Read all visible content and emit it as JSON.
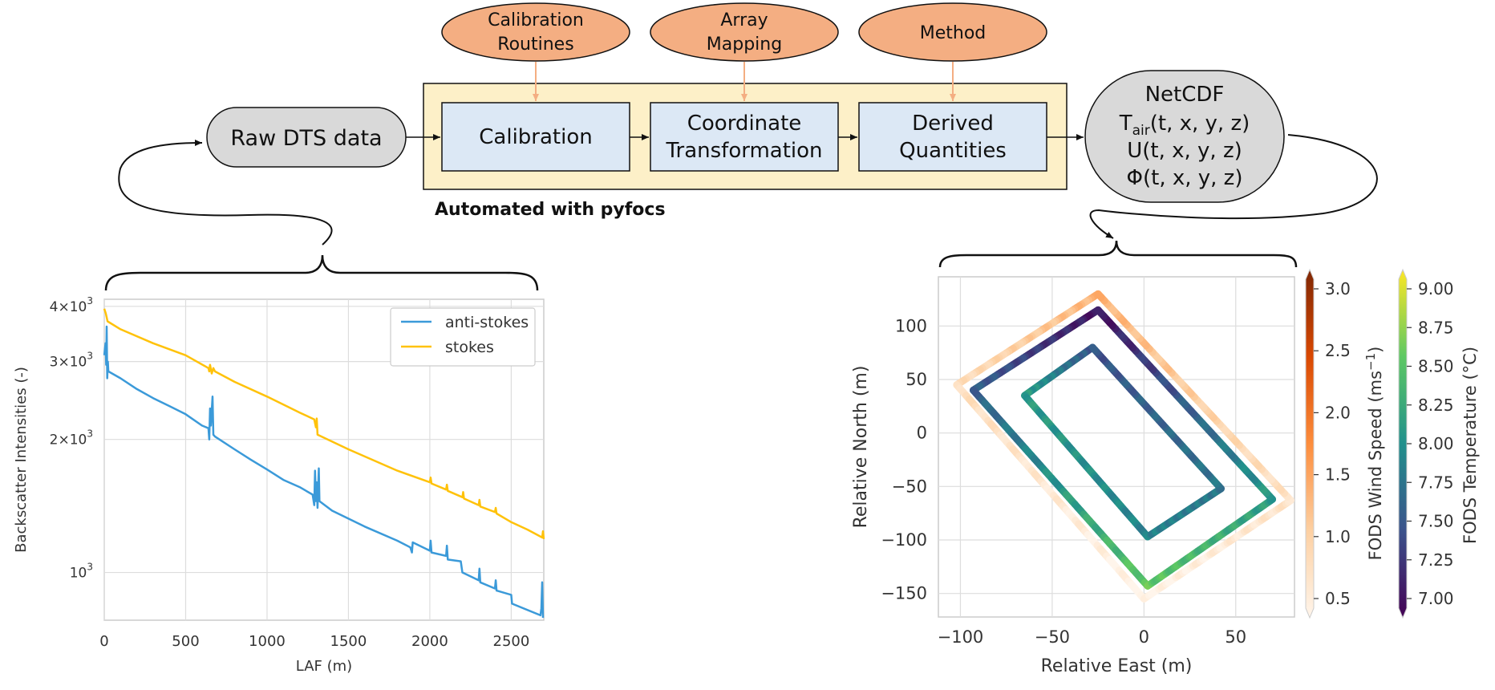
{
  "flow": {
    "inputs": [
      {
        "line1": "Calibration",
        "line2": "Routines"
      },
      {
        "line1": "Array",
        "line2": "Mapping"
      },
      {
        "line1": "Method",
        "line2": ""
      }
    ],
    "raw": "Raw DTS data",
    "steps": [
      {
        "line1": "Calibration",
        "line2": ""
      },
      {
        "line1": "Coordinate",
        "line2": "Transformation"
      },
      {
        "line1": "Derived",
        "line2": "Quantities"
      }
    ],
    "automated_label": "Automated with pyfocs",
    "netcdf": {
      "title": "NetCDF",
      "tair_T": "T",
      "tair_sub": "air",
      "tair_args": "(t, x, y, z)",
      "u": "U(t, x, y, z)",
      "phi": "Φ(t, x, y, z)"
    },
    "colors": {
      "input_fill": "#f4ae82",
      "step_fill": "#dce8f5",
      "auto_fill": "#fdf0c8",
      "grey_fill": "#d9d9d9",
      "arrow_orange": "#f4ae82"
    }
  },
  "chart_data": [
    {
      "type": "line",
      "xlabel": "LAF (m)",
      "ylabel": "Backscatter Intensities (-)",
      "yscale": "log",
      "xlim": [
        0,
        2700
      ],
      "ylim": [
        780,
        4150
      ],
      "xticks": [
        0,
        500,
        1000,
        1500,
        2000,
        2500
      ],
      "xtick_labels": [
        "0",
        "500",
        "1000",
        "1500",
        "2000",
        "2500"
      ],
      "ytick_labels": [
        {
          "value": 4000,
          "base": "4×10",
          "exp": "3"
        },
        {
          "value": 3000,
          "base": "3×10",
          "exp": "3"
        },
        {
          "value": 2000,
          "base": "2×10",
          "exp": "3"
        },
        {
          "value": 1000,
          "base": "10",
          "exp": "3"
        }
      ],
      "grid": true,
      "legend_position": "top-right",
      "series": [
        {
          "name": "anti-stokes",
          "color": "#3b9ad9",
          "points": [
            [
              0,
              3100
            ],
            [
              8,
              3300
            ],
            [
              12,
              2950
            ],
            [
              15,
              3600
            ],
            [
              18,
              2750
            ],
            [
              22,
              3000
            ],
            [
              25,
              2850
            ],
            [
              100,
              2750
            ],
            [
              200,
              2600
            ],
            [
              300,
              2480
            ],
            [
              400,
              2380
            ],
            [
              500,
              2280
            ],
            [
              600,
              2150
            ],
            [
              640,
              2120
            ],
            [
              645,
              2000
            ],
            [
              650,
              2350
            ],
            [
              655,
              2150
            ],
            [
              665,
              2500
            ],
            [
              670,
              2050
            ],
            [
              680,
              2030
            ],
            [
              800,
              1900
            ],
            [
              900,
              1800
            ],
            [
              1000,
              1710
            ],
            [
              1100,
              1620
            ],
            [
              1200,
              1560
            ],
            [
              1280,
              1500
            ],
            [
              1290,
              1420
            ],
            [
              1295,
              1700
            ],
            [
              1300,
              1450
            ],
            [
              1305,
              1600
            ],
            [
              1310,
              1400
            ],
            [
              1318,
              1720
            ],
            [
              1322,
              1450
            ],
            [
              1400,
              1380
            ],
            [
              1600,
              1270
            ],
            [
              1800,
              1180
            ],
            [
              1880,
              1140
            ],
            [
              1890,
              1110
            ],
            [
              1895,
              1170
            ],
            [
              2000,
              1120
            ],
            [
              2005,
              1180
            ],
            [
              2010,
              1110
            ],
            [
              2100,
              1090
            ],
            [
              2105,
              1150
            ],
            [
              2110,
              1070
            ],
            [
              2190,
              1060
            ],
            [
              2200,
              1000
            ],
            [
              2300,
              960
            ],
            [
              2305,
              1020
            ],
            [
              2310,
              950
            ],
            [
              2400,
              920
            ],
            [
              2405,
              960
            ],
            [
              2410,
              910
            ],
            [
              2500,
              890
            ],
            [
              2505,
              850
            ],
            [
              2680,
              800
            ],
            [
              2685,
              830
            ],
            [
              2690,
              950
            ],
            [
              2695,
              790
            ]
          ]
        },
        {
          "name": "stokes",
          "color": "#ffc20a",
          "points": [
            [
              0,
              3950
            ],
            [
              10,
              3850
            ],
            [
              20,
              3700
            ],
            [
              100,
              3550
            ],
            [
              300,
              3300
            ],
            [
              500,
              3100
            ],
            [
              640,
              2900
            ],
            [
              645,
              2850
            ],
            [
              650,
              2950
            ],
            [
              660,
              2820
            ],
            [
              670,
              2900
            ],
            [
              680,
              2850
            ],
            [
              800,
              2700
            ],
            [
              1000,
              2500
            ],
            [
              1200,
              2300
            ],
            [
              1290,
              2220
            ],
            [
              1300,
              2130
            ],
            [
              1305,
              2230
            ],
            [
              1310,
              2050
            ],
            [
              1500,
              1900
            ],
            [
              1800,
              1700
            ],
            [
              2000,
              1600
            ],
            [
              2005,
              1640
            ],
            [
              2010,
              1590
            ],
            [
              2100,
              1540
            ],
            [
              2105,
              1580
            ],
            [
              2110,
              1530
            ],
            [
              2200,
              1480
            ],
            [
              2205,
              1520
            ],
            [
              2210,
              1470
            ],
            [
              2300,
              1420
            ],
            [
              2305,
              1460
            ],
            [
              2310,
              1410
            ],
            [
              2400,
              1370
            ],
            [
              2405,
              1400
            ],
            [
              2410,
              1360
            ],
            [
              2500,
              1300
            ],
            [
              2600,
              1250
            ],
            [
              2690,
              1200
            ],
            [
              2695,
              1240
            ],
            [
              2700,
              1190
            ]
          ]
        }
      ]
    },
    {
      "type": "scatter",
      "xlabel": "Relative East (m)",
      "ylabel": "Relative North (m)",
      "xlim": [
        -112,
        82
      ],
      "ylim": [
        -172,
        146
      ],
      "xticks": [
        -100,
        -50,
        0,
        50
      ],
      "xtick_labels": [
        "−100",
        "−50",
        "0",
        "50"
      ],
      "yticks": [
        100,
        50,
        0,
        -50,
        -100,
        -150
      ],
      "ytick_labels": [
        "100",
        "50",
        "0",
        "−50",
        "−100",
        "−150"
      ],
      "grid": true,
      "series": [
        {
          "name": "FODS Wind Speed",
          "vertices": [
            [
              -25,
              130
            ],
            [
              -102,
              45
            ],
            [
              0,
              -155
            ],
            [
              80,
              -63
            ],
            [
              -25,
              130
            ]
          ],
          "color_values": [
            1.4,
            0.9,
            0.5,
            0.8,
            1.4
          ]
        },
        {
          "name": "FODS Temperature",
          "vertices": [
            [
              -25,
              115
            ],
            [
              -93,
              40
            ],
            [
              2,
              -143
            ],
            [
              70,
              -62
            ],
            [
              -25,
              115
            ]
          ],
          "color_values": [
            7.1,
            7.6,
            8.5,
            8.1,
            7.1
          ]
        },
        {
          "name": "FODS Temperature",
          "vertices": [
            [
              -28,
              80
            ],
            [
              -65,
              35
            ],
            [
              2,
              -97
            ],
            [
              42,
              -52
            ],
            [
              -28,
              80
            ]
          ],
          "color_values": [
            7.5,
            8.1,
            7.9,
            7.8,
            7.5
          ]
        }
      ],
      "colorbars": [
        {
          "label": "FODS Wind Speed (ms",
          "label_sup": "−1",
          "label_end": ")",
          "min": 0.5,
          "max": 3.0,
          "ticks": [
            "0.5",
            "1.0",
            "1.5",
            "2.0",
            "2.5",
            "3.0"
          ],
          "colors": [
            "#fff5eb",
            "#fdd0a2",
            "#fd8d3c",
            "#d94801",
            "#7f2704"
          ]
        },
        {
          "label": "FODS Temperature (°C)",
          "min": 7.0,
          "max": 9.0,
          "ticks": [
            "7.00",
            "7.25",
            "7.50",
            "7.75",
            "8.00",
            "8.25",
            "8.50",
            "8.75",
            "9.00"
          ],
          "colors": [
            "#440154",
            "#3b528b",
            "#21908c",
            "#5dc863",
            "#fde725"
          ]
        }
      ]
    }
  ]
}
